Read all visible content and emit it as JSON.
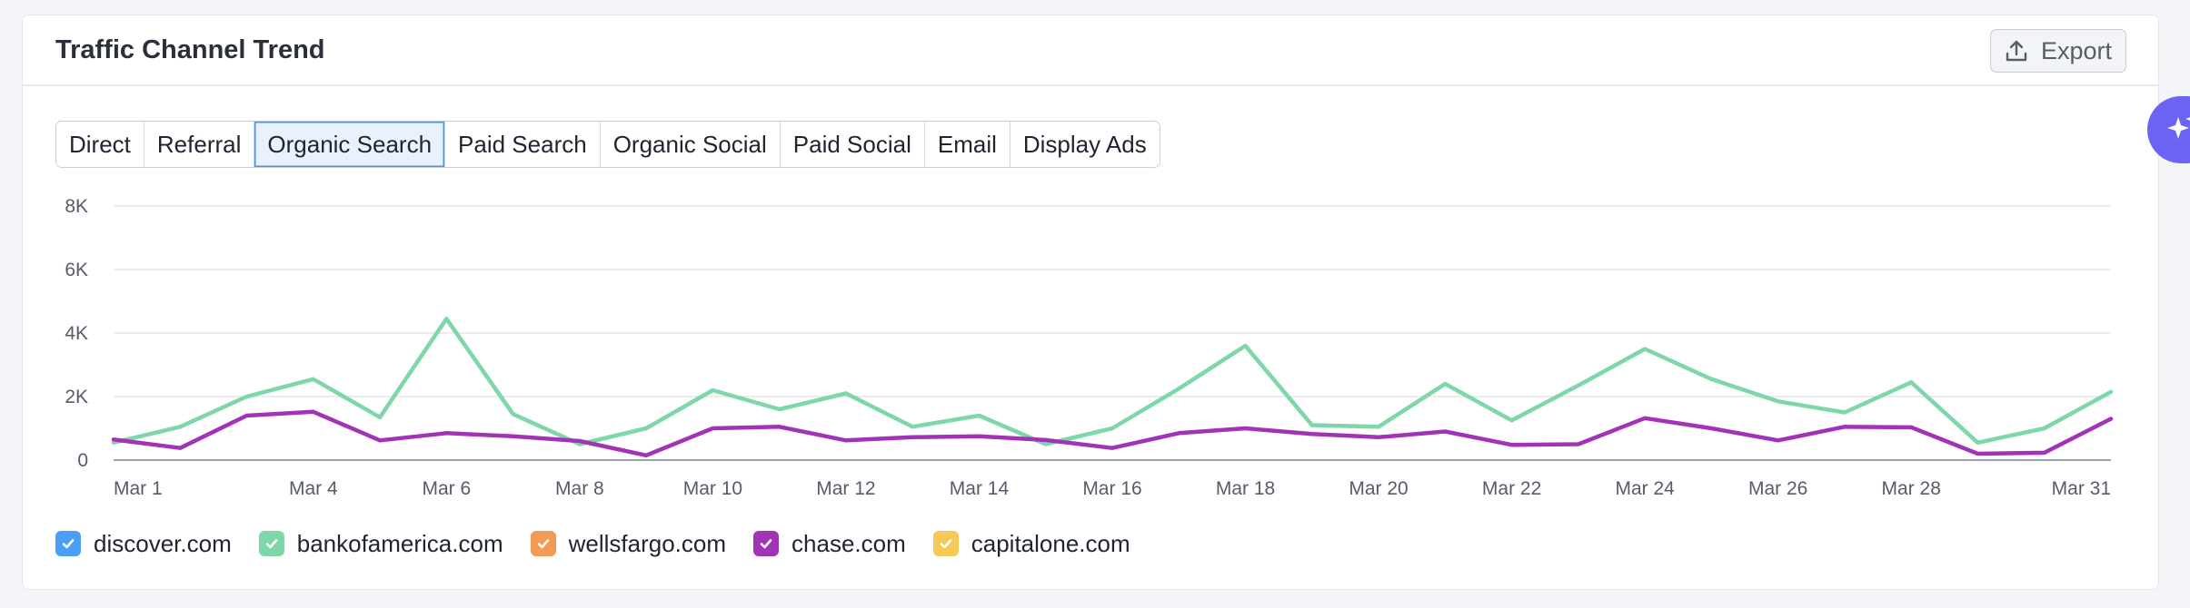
{
  "header": {
    "title": "Traffic Channel Trend",
    "export_label": "Export"
  },
  "tabs": [
    {
      "label": "Direct",
      "active": false
    },
    {
      "label": "Referral",
      "active": false
    },
    {
      "label": "Organic Search",
      "active": true
    },
    {
      "label": "Paid Search",
      "active": false
    },
    {
      "label": "Organic Social",
      "active": false
    },
    {
      "label": "Paid Social",
      "active": false
    },
    {
      "label": "Email",
      "active": false
    },
    {
      "label": "Display Ads",
      "active": false
    }
  ],
  "legend": [
    {
      "label": "discover.com",
      "color": "#4a9ff5",
      "checked": true
    },
    {
      "label": "bankofamerica.com",
      "color": "#7dd7a9",
      "checked": true
    },
    {
      "label": "wellsfargo.com",
      "color": "#f39a55",
      "checked": true
    },
    {
      "label": "chase.com",
      "color": "#a233b6",
      "checked": true
    },
    {
      "label": "capitalone.com",
      "color": "#f4c955",
      "checked": true
    }
  ],
  "chart_data": {
    "type": "line",
    "title": "Traffic Channel Trend",
    "xlabel": "",
    "ylabel": "",
    "ylim": [
      0,
      8000
    ],
    "y_ticks": [
      "0",
      "2K",
      "4K",
      "6K",
      "8K"
    ],
    "y_tick_values": [
      0,
      2000,
      4000,
      6000,
      8000
    ],
    "x": [
      "Mar 1",
      "Mar 2",
      "Mar 3",
      "Mar 4",
      "Mar 5",
      "Mar 6",
      "Mar 7",
      "Mar 8",
      "Mar 9",
      "Mar 10",
      "Mar 11",
      "Mar 12",
      "Mar 13",
      "Mar 14",
      "Mar 15",
      "Mar 16",
      "Mar 17",
      "Mar 18",
      "Mar 19",
      "Mar 20",
      "Mar 21",
      "Mar 22",
      "Mar 23",
      "Mar 24",
      "Mar 25",
      "Mar 26",
      "Mar 27",
      "Mar 28",
      "Mar 29",
      "Mar 30",
      "Mar 31"
    ],
    "x_tick_labels": [
      "Mar 1",
      "Mar 4",
      "Mar 6",
      "Mar 8",
      "Mar 10",
      "Mar 12",
      "Mar 14",
      "Mar 16",
      "Mar 18",
      "Mar 20",
      "Mar 22",
      "Mar 24",
      "Mar 26",
      "Mar 28",
      "Mar 31"
    ],
    "series": [
      {
        "name": "bankofamerica.com",
        "color": "#7dd7a9",
        "values": [
          550,
          1050,
          2000,
          2550,
          1350,
          4450,
          1450,
          500,
          1000,
          2200,
          1600,
          2100,
          1050,
          1400,
          500,
          1000,
          2250,
          3600,
          1100,
          1050,
          2400,
          1250,
          2350,
          3500,
          2550,
          1850,
          1500,
          2450,
          550,
          1000,
          2150
        ]
      },
      {
        "name": "chase.com",
        "color": "#a233b6",
        "values": [
          650,
          380,
          1400,
          1520,
          620,
          850,
          750,
          600,
          150,
          1000,
          1050,
          620,
          720,
          750,
          630,
          380,
          850,
          1000,
          820,
          720,
          900,
          480,
          500,
          1320,
          1000,
          620,
          1050,
          1030,
          200,
          230,
          1300
        ]
      }
    ]
  }
}
